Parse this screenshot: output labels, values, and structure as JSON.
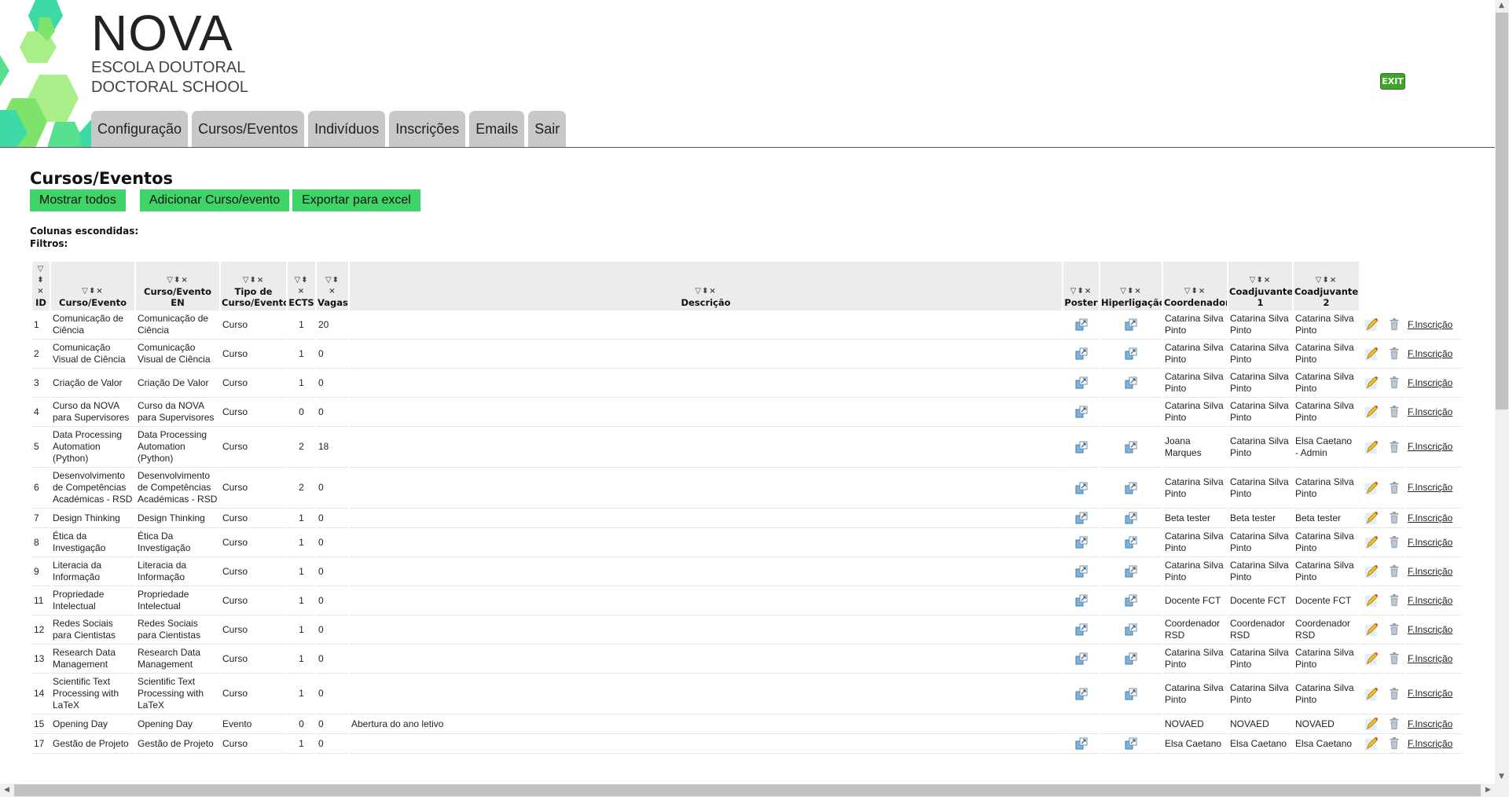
{
  "brand": {
    "name": "NOVA",
    "line1": "ESCOLA DOUTORAL",
    "line2": "DOCTORAL SCHOOL",
    "colors": [
      "#3dd9a6",
      "#7ee36a",
      "#a8ef8a",
      "#56e08f"
    ]
  },
  "nav": [
    {
      "label": "Configuração"
    },
    {
      "label": "Cursos/Eventos"
    },
    {
      "label": "Indivíduos"
    },
    {
      "label": "Inscrições"
    },
    {
      "label": "Emails"
    },
    {
      "label": "Sair"
    }
  ],
  "exit": {
    "label": "EXIT",
    "color": "#3fa52a"
  },
  "page": {
    "title": "Cursos/Eventos",
    "buttons": {
      "show_all": "Mostrar todos",
      "add": "Adicionar Curso/evento",
      "export": "Exportar para excel"
    },
    "hidden_columns": "Colunas escondidas:",
    "filters": "Filtros:",
    "button_color": "#3ed467"
  },
  "table": {
    "columns": [
      "ID",
      "Curso/Evento",
      "Curso/Evento EN",
      "Tipo de Curso/Evento",
      "ECTS",
      "Vagas",
      "Descrição",
      "Poster",
      "Hiperligação",
      "Coordenador",
      "Coadjuvante 1",
      "Coadjuvante 2"
    ],
    "link_label": "F.Inscrição",
    "rows": [
      {
        "id": "1",
        "name": "Comunicação de Ciência",
        "name_en": "Comunicação de Ciência",
        "type": "Curso",
        "ects": "1",
        "vagas": "20",
        "desc": "",
        "poster": true,
        "link": true,
        "coord": "Catarina Silva Pinto",
        "c1": "Catarina Silva Pinto",
        "c2": "Catarina Silva Pinto"
      },
      {
        "id": "2",
        "name": "Comunicação Visual de Ciência",
        "name_en": "Comunicação Visual de Ciência",
        "type": "Curso",
        "ects": "1",
        "vagas": "0",
        "desc": "",
        "poster": true,
        "link": true,
        "coord": "Catarina Silva Pinto",
        "c1": "Catarina Silva Pinto",
        "c2": "Catarina Silva Pinto"
      },
      {
        "id": "3",
        "name": "Criação de Valor",
        "name_en": "Criação De Valor",
        "type": "Curso",
        "ects": "1",
        "vagas": "0",
        "desc": "",
        "poster": true,
        "link": true,
        "coord": "Catarina Silva Pinto",
        "c1": "Catarina Silva Pinto",
        "c2": "Catarina Silva Pinto"
      },
      {
        "id": "4",
        "name": "Curso da NOVA para Supervisores",
        "name_en": "Curso da NOVA para Supervisores",
        "type": "Curso",
        "ects": "0",
        "vagas": "0",
        "desc": "",
        "poster": true,
        "link": false,
        "coord": "Catarina Silva Pinto",
        "c1": "Catarina Silva Pinto",
        "c2": "Catarina Silva Pinto"
      },
      {
        "id": "5",
        "name": "Data Processing Automation (Python)",
        "name_en": "Data Processing Automation (Python)",
        "type": "Curso",
        "ects": "2",
        "vagas": "18",
        "desc": "",
        "poster": true,
        "link": true,
        "coord": "Joana Marques",
        "c1": "Catarina Silva Pinto",
        "c2": "Elsa Caetano - Admin"
      },
      {
        "id": "6",
        "name": "Desenvolvimento de Competências Académicas - RSD",
        "name_en": "Desenvolvimento de Competências Académicas - RSD",
        "type": "Curso",
        "ects": "2",
        "vagas": "0",
        "desc": "",
        "poster": true,
        "link": true,
        "coord": "Catarina Silva Pinto",
        "c1": "Catarina Silva Pinto",
        "c2": "Catarina Silva Pinto"
      },
      {
        "id": "7",
        "name": "Design Thinking",
        "name_en": "Design Thinking",
        "type": "Curso",
        "ects": "1",
        "vagas": "0",
        "desc": "",
        "poster": true,
        "link": true,
        "coord": "Beta tester",
        "c1": "Beta tester",
        "c2": "Beta tester"
      },
      {
        "id": "8",
        "name": "Ética da Investigação",
        "name_en": "Ética Da Investigação",
        "type": "Curso",
        "ects": "1",
        "vagas": "0",
        "desc": "",
        "poster": true,
        "link": true,
        "coord": "Catarina Silva Pinto",
        "c1": "Catarina Silva Pinto",
        "c2": "Catarina Silva Pinto"
      },
      {
        "id": "9",
        "name": "Literacia da Informação",
        "name_en": "Literacia da Informação",
        "type": "Curso",
        "ects": "1",
        "vagas": "0",
        "desc": "",
        "poster": true,
        "link": true,
        "coord": "Catarina Silva Pinto",
        "c1": "Catarina Silva Pinto",
        "c2": "Catarina Silva Pinto"
      },
      {
        "id": "11",
        "name": "Propriedade Intelectual",
        "name_en": "Propriedade Intelectual",
        "type": "Curso",
        "ects": "1",
        "vagas": "0",
        "desc": "",
        "poster": true,
        "link": true,
        "coord": "Docente FCT",
        "c1": "Docente FCT",
        "c2": "Docente FCT"
      },
      {
        "id": "12",
        "name": "Redes Sociais para Cientistas",
        "name_en": "Redes Sociais para Cientistas",
        "type": "Curso",
        "ects": "1",
        "vagas": "0",
        "desc": "",
        "poster": true,
        "link": true,
        "coord": "Coordenador RSD",
        "c1": "Coordenador RSD",
        "c2": "Coordenador RSD"
      },
      {
        "id": "13",
        "name": "Research Data Management",
        "name_en": "Research Data Management",
        "type": "Curso",
        "ects": "1",
        "vagas": "0",
        "desc": "",
        "poster": true,
        "link": true,
        "coord": "Catarina Silva Pinto",
        "c1": "Catarina Silva Pinto",
        "c2": "Catarina Silva Pinto"
      },
      {
        "id": "14",
        "name": "Scientific Text Processing with LaTeX",
        "name_en": "Scientific Text Processing with LaTeX",
        "type": "Curso",
        "ects": "1",
        "vagas": "0",
        "desc": "",
        "poster": true,
        "link": true,
        "coord": "Catarina Silva Pinto",
        "c1": "Catarina Silva Pinto",
        "c2": "Catarina Silva Pinto"
      },
      {
        "id": "15",
        "name": "Opening Day",
        "name_en": "Opening Day",
        "type": "Evento",
        "ects": "0",
        "vagas": "0",
        "desc": "Abertura do ano letivo",
        "poster": false,
        "link": false,
        "coord": "NOVAED",
        "c1": "NOVAED",
        "c2": "NOVAED"
      },
      {
        "id": "17",
        "name": "Gestão de Projeto",
        "name_en": "Gestão de Projeto",
        "type": "Curso",
        "ects": "1",
        "vagas": "0",
        "desc": "",
        "poster": true,
        "link": true,
        "coord": "Elsa Caetano",
        "c1": "Elsa Caetano",
        "c2": "Elsa Caetano"
      }
    ]
  }
}
